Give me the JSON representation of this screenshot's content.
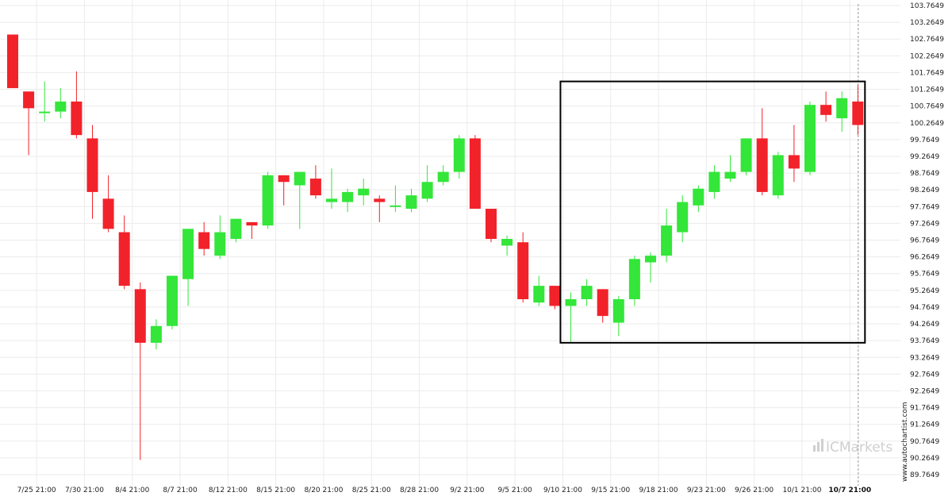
{
  "chart_data": {
    "type": "candlestick",
    "title": "",
    "xlabel": "",
    "ylabel": "",
    "ylim": [
      89.5,
      103.8
    ],
    "grid": true,
    "colors": {
      "up": "#33e639",
      "down": "#f2222a",
      "pattern_box": "#000000",
      "grid": "#ebebeb"
    },
    "y_ticks": [
      "103.7649",
      "103.2649",
      "102.7649",
      "102.2649",
      "101.7649",
      "101.2649",
      "100.7649",
      "100.2649",
      "99.7649",
      "99.2649",
      "98.7649",
      "98.2649",
      "97.7649",
      "97.2649",
      "96.7649",
      "96.2649",
      "95.7649",
      "95.2649",
      "94.7649",
      "94.2649",
      "93.7649",
      "93.2649",
      "92.7649",
      "92.2649",
      "91.7649",
      "91.2649",
      "90.7649",
      "90.2649",
      "89.7649"
    ],
    "x_ticks": [
      {
        "label": "7/25 21:00",
        "index": 1.5
      },
      {
        "label": "7/30 21:00",
        "index": 4.5
      },
      {
        "label": "8/4 21:00",
        "index": 7.5
      },
      {
        "label": "8/7 21:00",
        "index": 10.5
      },
      {
        "label": "8/12 21:00",
        "index": 13.5
      },
      {
        "label": "8/15 21:00",
        "index": 16.5
      },
      {
        "label": "8/20 21:00",
        "index": 19.5
      },
      {
        "label": "8/25 21:00",
        "index": 22.5
      },
      {
        "label": "8/28 21:00",
        "index": 25.5
      },
      {
        "label": "9/2 21:00",
        "index": 28.5
      },
      {
        "label": "9/5 21:00",
        "index": 31.5
      },
      {
        "label": "9/10 21:00",
        "index": 34.5
      },
      {
        "label": "9/15 21:00",
        "index": 37.5
      },
      {
        "label": "9/18 21:00",
        "index": 40.5
      },
      {
        "label": "9/23 21:00",
        "index": 43.5
      },
      {
        "label": "9/26 21:00",
        "index": 46.5
      },
      {
        "label": "10/1 21:00",
        "index": 49.5
      },
      {
        "label": "10/7 21:00",
        "index": 52.5,
        "bold": true
      }
    ],
    "candles": [
      {
        "o": 102.9,
        "h": 102.9,
        "l": 101.3,
        "c": 101.3
      },
      {
        "o": 101.2,
        "h": 101.2,
        "l": 99.3,
        "c": 100.7
      },
      {
        "o": 100.6,
        "h": 101.5,
        "l": 100.3,
        "c": 100.6
      },
      {
        "o": 100.6,
        "h": 101.3,
        "l": 100.4,
        "c": 100.9
      },
      {
        "o": 100.9,
        "h": 101.8,
        "l": 99.8,
        "c": 99.9
      },
      {
        "o": 99.8,
        "h": 100.2,
        "l": 97.4,
        "c": 98.2
      },
      {
        "o": 98.0,
        "h": 98.7,
        "l": 97.0,
        "c": 97.1
      },
      {
        "o": 97.0,
        "h": 97.5,
        "l": 95.3,
        "c": 95.4
      },
      {
        "o": 95.3,
        "h": 95.5,
        "l": 90.2,
        "c": 93.7
      },
      {
        "o": 93.7,
        "h": 94.4,
        "l": 93.5,
        "c": 94.2
      },
      {
        "o": 94.2,
        "h": 95.7,
        "l": 94.1,
        "c": 95.7
      },
      {
        "o": 95.6,
        "h": 97.1,
        "l": 94.8,
        "c": 97.1
      },
      {
        "o": 97.0,
        "h": 97.3,
        "l": 96.3,
        "c": 96.5
      },
      {
        "o": 96.3,
        "h": 97.5,
        "l": 96.2,
        "c": 97.0
      },
      {
        "o": 96.8,
        "h": 97.4,
        "l": 96.7,
        "c": 97.4
      },
      {
        "o": 97.3,
        "h": 97.3,
        "l": 96.8,
        "c": 97.2
      },
      {
        "o": 97.2,
        "h": 98.8,
        "l": 97.1,
        "c": 98.7
      },
      {
        "o": 98.7,
        "h": 98.7,
        "l": 97.8,
        "c": 98.5
      },
      {
        "o": 98.4,
        "h": 98.8,
        "l": 97.1,
        "c": 98.8
      },
      {
        "o": 98.6,
        "h": 99.0,
        "l": 98.0,
        "c": 98.1
      },
      {
        "o": 97.9,
        "h": 98.9,
        "l": 97.7,
        "c": 98.0
      },
      {
        "o": 97.9,
        "h": 98.3,
        "l": 97.6,
        "c": 98.2
      },
      {
        "o": 98.1,
        "h": 98.6,
        "l": 97.8,
        "c": 98.3
      },
      {
        "o": 98.0,
        "h": 98.1,
        "l": 97.3,
        "c": 97.9
      },
      {
        "o": 97.8,
        "h": 98.4,
        "l": 97.6,
        "c": 97.8
      },
      {
        "o": 97.7,
        "h": 98.3,
        "l": 97.6,
        "c": 98.1
      },
      {
        "o": 98.0,
        "h": 99.0,
        "l": 97.9,
        "c": 98.5
      },
      {
        "o": 98.5,
        "h": 99.0,
        "l": 98.4,
        "c": 98.8
      },
      {
        "o": 98.8,
        "h": 99.9,
        "l": 98.6,
        "c": 99.8
      },
      {
        "o": 99.8,
        "h": 99.9,
        "l": 97.7,
        "c": 97.7
      },
      {
        "o": 97.7,
        "h": 97.7,
        "l": 96.7,
        "c": 96.8
      },
      {
        "o": 96.6,
        "h": 96.9,
        "l": 96.3,
        "c": 96.8
      },
      {
        "o": 96.7,
        "h": 97.0,
        "l": 94.9,
        "c": 95.0
      },
      {
        "o": 94.9,
        "h": 95.7,
        "l": 94.8,
        "c": 95.4
      },
      {
        "o": 95.4,
        "h": 95.4,
        "l": 94.7,
        "c": 94.8
      },
      {
        "o": 94.8,
        "h": 95.2,
        "l": 93.7,
        "c": 95.0
      },
      {
        "o": 95.0,
        "h": 95.6,
        "l": 94.8,
        "c": 95.4
      },
      {
        "o": 95.3,
        "h": 95.3,
        "l": 94.3,
        "c": 94.5
      },
      {
        "o": 94.3,
        "h": 95.1,
        "l": 93.9,
        "c": 95.0
      },
      {
        "o": 95.0,
        "h": 96.3,
        "l": 94.8,
        "c": 96.2
      },
      {
        "o": 96.1,
        "h": 96.4,
        "l": 95.5,
        "c": 96.3
      },
      {
        "o": 96.3,
        "h": 97.7,
        "l": 96.1,
        "c": 97.2
      },
      {
        "o": 97.0,
        "h": 98.1,
        "l": 96.7,
        "c": 97.9
      },
      {
        "o": 97.8,
        "h": 98.4,
        "l": 97.6,
        "c": 98.3
      },
      {
        "o": 98.2,
        "h": 99.0,
        "l": 98.0,
        "c": 98.8
      },
      {
        "o": 98.6,
        "h": 99.3,
        "l": 98.5,
        "c": 98.8
      },
      {
        "o": 98.8,
        "h": 99.8,
        "l": 98.7,
        "c": 99.8
      },
      {
        "o": 99.8,
        "h": 100.7,
        "l": 98.1,
        "c": 98.2
      },
      {
        "o": 98.1,
        "h": 99.4,
        "l": 98.0,
        "c": 99.3
      },
      {
        "o": 99.3,
        "h": 100.2,
        "l": 98.5,
        "c": 98.9
      },
      {
        "o": 98.8,
        "h": 100.9,
        "l": 98.7,
        "c": 100.8
      },
      {
        "o": 100.8,
        "h": 101.2,
        "l": 100.3,
        "c": 100.5
      },
      {
        "o": 100.4,
        "h": 101.2,
        "l": 100.0,
        "c": 101.0
      },
      {
        "o": 100.9,
        "h": 101.4,
        "l": 99.9,
        "c": 100.2
      }
    ],
    "pattern_box": {
      "start_index": 34.5,
      "end_index": 53.0,
      "top": 101.5,
      "bottom": 93.7
    }
  },
  "watermark": {
    "url_text": "www.autochartist.com",
    "brand_text": "ICMarkets"
  }
}
